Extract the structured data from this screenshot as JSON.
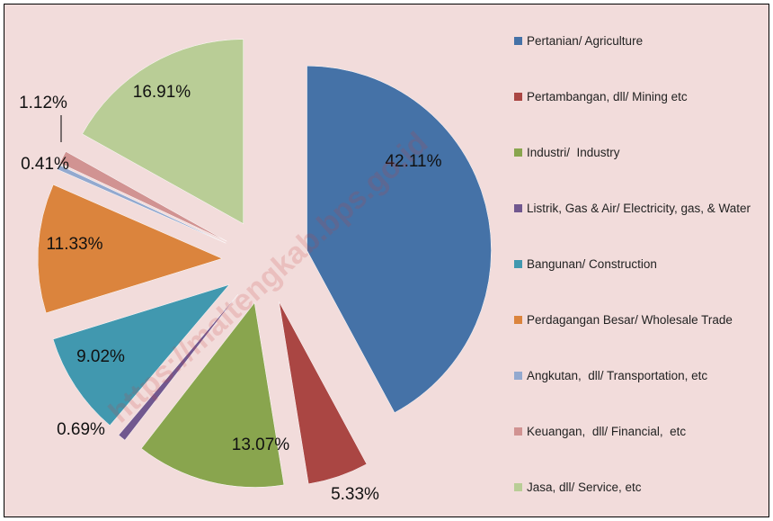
{
  "chart_data": {
    "type": "pie",
    "categories": [
      "Pertanian/ Agriculture",
      "Pertambangan, dll/ Mining etc",
      "Industri/  Industry",
      "Listrik, Gas & Air/ Electricity, gas, & Water",
      "Bangunan/ Construction",
      "Perdagangan Besar/ Wholesale Trade",
      "Angkutan,  dll/ Transportation, etc",
      "Keuangan,  dll/ Financial,  etc",
      "Jasa, dll/ Service, etc"
    ],
    "values": [
      42.11,
      5.33,
      13.07,
      0.69,
      9.02,
      11.33,
      0.41,
      1.12,
      16.91
    ],
    "value_labels": [
      "42.11%",
      "5.33%",
      "13.07%",
      "0.69%",
      "9.02%",
      "11.33%",
      "0.41%",
      "1.12%",
      "16.91%"
    ],
    "colors": [
      "#4572a7",
      "#aa4643",
      "#89a54e",
      "#71588f",
      "#4198af",
      "#db843d",
      "#93a9cf",
      "#d19392",
      "#b9cd96"
    ],
    "legend": "right",
    "watermark": "https://maltengkab.bps.go.id"
  }
}
